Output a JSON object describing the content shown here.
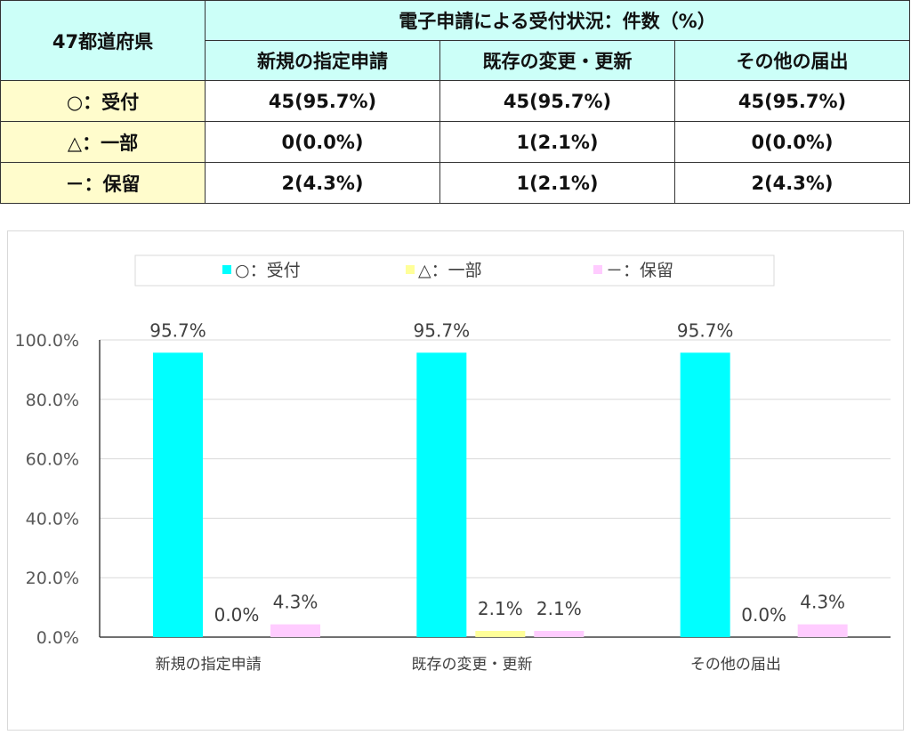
{
  "table": {
    "corner_label": "47都道府県",
    "group_header": "電子申請による受付状況：件数（%）",
    "columns": [
      "新規の指定申請",
      "既存の変更・更新",
      "その他の届出"
    ],
    "rows": [
      {
        "label": "○：受付",
        "values": [
          "45(95.7%)",
          "45(95.7%)",
          "45(95.7%)"
        ]
      },
      {
        "label": "△：一部",
        "values": [
          "0(0.0%)",
          "1(2.1%)",
          "0(0.0%)"
        ]
      },
      {
        "label": "－：保留",
        "values": [
          "2(4.3%)",
          "1(2.1%)",
          "2(4.3%)"
        ]
      }
    ]
  },
  "colors": {
    "accepted": "#00ffff",
    "partial": "#ffff99",
    "pending": "#ffccff",
    "table_header_bg": "#ccfff8",
    "table_rowhead_bg": "#fffccc"
  },
  "chart_data": {
    "type": "bar",
    "categories": [
      "新規の指定申請",
      "既存の変更・更新",
      "その他の届出"
    ],
    "series": [
      {
        "name": "○：受付",
        "values": [
          95.7,
          95.7,
          95.7
        ],
        "labels": [
          "95.7%",
          "95.7%",
          "95.7%"
        ]
      },
      {
        "name": "△：一部",
        "values": [
          0.0,
          2.1,
          0.0
        ],
        "labels": [
          "0.0%",
          "2.1%",
          "0.0%"
        ]
      },
      {
        "name": "－：保留",
        "values": [
          4.3,
          2.1,
          4.3
        ],
        "labels": [
          "4.3%",
          "2.1%",
          "4.3%"
        ]
      }
    ],
    "ylim": [
      0,
      100
    ],
    "yticks": [
      "0.0%",
      "20.0%",
      "40.0%",
      "60.0%",
      "80.0%",
      "100.0%"
    ],
    "grid": true,
    "legend_position": "top"
  }
}
